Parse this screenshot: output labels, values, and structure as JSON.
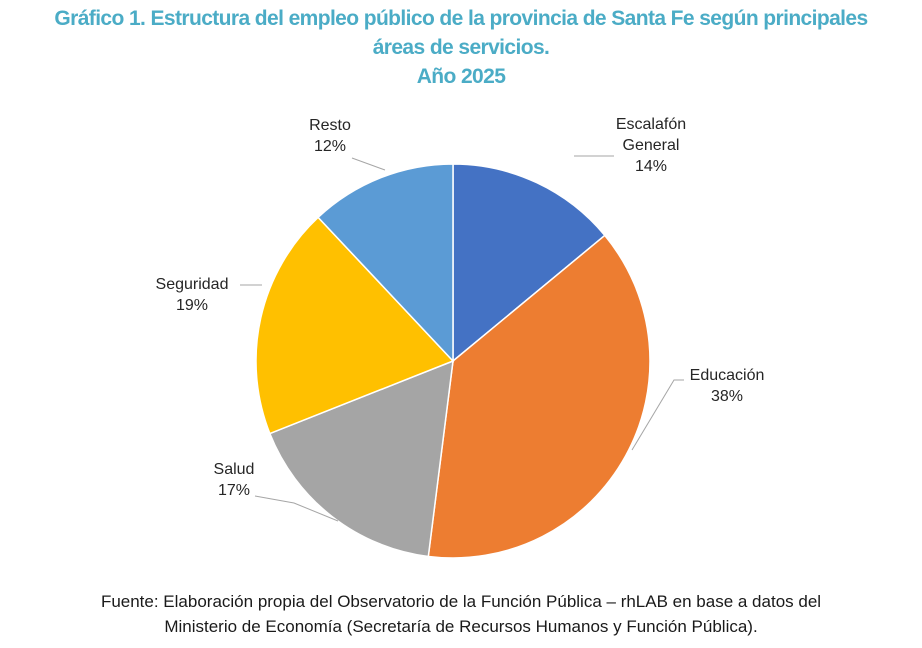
{
  "title": {
    "line1": "Gráfico 1. Estructura del empleo público de la provincia de Santa Fe según principales",
    "line2": "áreas de servicios.",
    "line3": "Año 2025"
  },
  "chart_data": {
    "type": "pie",
    "title": "Estructura del empleo público de la provincia de Santa Fe según principales áreas de servicios. Año 2025",
    "categories": [
      "Escalafón General",
      "Educación",
      "Salud",
      "Seguridad",
      "Resto"
    ],
    "values": [
      14,
      38,
      17,
      19,
      12
    ],
    "unit": "%",
    "colors": [
      "#4472c4",
      "#ed7d31",
      "#a5a5a5",
      "#ffc000",
      "#5b9bd5"
    ],
    "labels": [
      {
        "lines": [
          "Escalafón",
          "General",
          "14%"
        ]
      },
      {
        "lines": [
          "Educación",
          "38%"
        ]
      },
      {
        "lines": [
          "Salud",
          "17%"
        ]
      },
      {
        "lines": [
          "Seguridad",
          "19%"
        ]
      },
      {
        "lines": [
          "Resto",
          "12%"
        ]
      }
    ]
  },
  "source": {
    "line1": "Fuente: Elaboración propia del Observatorio de la Función Pública – rhLAB en base a datos del",
    "line2": "Ministerio de Economía (Secretaría de Recursos Humanos y Función Pública)."
  }
}
